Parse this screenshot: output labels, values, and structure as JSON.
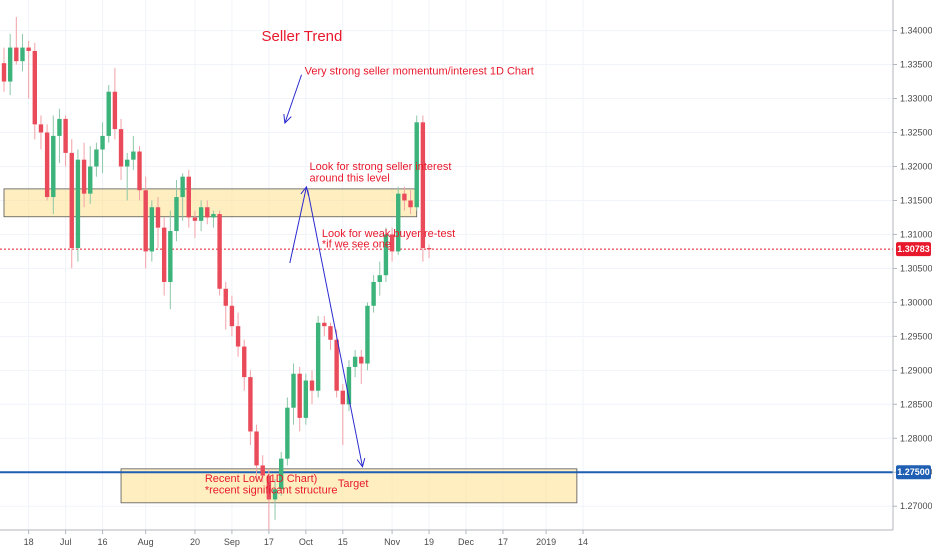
{
  "chart_data": {
    "type": "candlestick",
    "title": "Seller Trend",
    "ylim": [
      1.2665,
      1.3445
    ],
    "y_ticks": [
      "1.34000",
      "1.33500",
      "1.33000",
      "1.32500",
      "1.32000",
      "1.31500",
      "1.31000",
      "1.30500",
      "1.30000",
      "1.29500",
      "1.29000",
      "1.28500",
      "1.28000",
      "1.27500",
      "1.27000"
    ],
    "y_tick_values": [
      1.34,
      1.335,
      1.33,
      1.325,
      1.32,
      1.315,
      1.31,
      1.305,
      1.3,
      1.295,
      1.29,
      1.285,
      1.28,
      1.275,
      1.27
    ],
    "x_ticks": [
      "18",
      "Jul",
      "16",
      "Aug",
      "20",
      "Sep",
      "17",
      "Oct",
      "15",
      "Nov",
      "19",
      "Dec",
      "17",
      "2019",
      "14"
    ],
    "x_tick_index": [
      4,
      10,
      16,
      23,
      31,
      37,
      43,
      49,
      55,
      63,
      69,
      75,
      81,
      88,
      94
    ],
    "current_price": {
      "label": "1.30783",
      "value": 1.30783
    },
    "level_line": {
      "label": "1.27500",
      "value": 1.275
    },
    "zones": [
      {
        "name": "resistance-zone",
        "from_index": 0,
        "to_index": 67,
        "low": 1.3126,
        "high": 1.3167
      },
      {
        "name": "target-zone",
        "from_index": 19,
        "to_index": 93,
        "low": 1.2705,
        "high": 1.2755
      }
    ],
    "annotations": [
      {
        "text": "Very strong seller momentum/interest 1D Chart",
        "index": 48.8,
        "price": 1.3335
      },
      {
        "text": "Look for strong seller interest",
        "index": 49.6,
        "price": 1.3195
      },
      {
        "text": "around this level",
        "index": 49.6,
        "price": 1.3178
      },
      {
        "text": "Look for weak buyer re-test",
        "index": 51.6,
        "price": 1.3096
      },
      {
        "text": "*if we see one",
        "index": 51.6,
        "price": 1.3081
      },
      {
        "text": "Recent Low (1D Chart)",
        "index": 32.6,
        "price": 1.2736
      },
      {
        "text": "*recent significant structure",
        "index": 32.6,
        "price": 1.2719
      },
      {
        "text": "Target",
        "index": 54.2,
        "price": 1.2728
      }
    ],
    "arrows": [
      {
        "name": "momentum-arrow",
        "from": [
          48.3,
          1.3335
        ],
        "to": [
          45.6,
          1.3264
        ]
      },
      {
        "name": "upward-arrow",
        "from": [
          46.4,
          1.3058
        ],
        "to": [
          49.1,
          1.317
        ]
      },
      {
        "name": "target-arrow",
        "from": [
          49.3,
          1.3165
        ],
        "to": [
          58.2,
          1.2758
        ]
      }
    ],
    "candles": [
      {
        "o": 1.3352,
        "h": 1.3375,
        "l": 1.331,
        "c": 1.3325
      },
      {
        "o": 1.3325,
        "h": 1.3395,
        "l": 1.3305,
        "c": 1.3375
      },
      {
        "o": 1.3375,
        "h": 1.342,
        "l": 1.335,
        "c": 1.3355
      },
      {
        "o": 1.3355,
        "h": 1.3395,
        "l": 1.334,
        "c": 1.3375
      },
      {
        "o": 1.3375,
        "h": 1.3385,
        "l": 1.33,
        "c": 1.337
      },
      {
        "o": 1.337,
        "h": 1.3382,
        "l": 1.324,
        "c": 1.3262
      },
      {
        "o": 1.3262,
        "h": 1.3275,
        "l": 1.3225,
        "c": 1.325
      },
      {
        "o": 1.325,
        "h": 1.3262,
        "l": 1.315,
        "c": 1.3155
      },
      {
        "o": 1.3155,
        "h": 1.3275,
        "l": 1.313,
        "c": 1.3245
      },
      {
        "o": 1.3245,
        "h": 1.3285,
        "l": 1.3205,
        "c": 1.327
      },
      {
        "o": 1.327,
        "h": 1.3275,
        "l": 1.32,
        "c": 1.322
      },
      {
        "o": 1.322,
        "h": 1.324,
        "l": 1.305,
        "c": 1.308
      },
      {
        "o": 1.308,
        "h": 1.3225,
        "l": 1.306,
        "c": 1.321
      },
      {
        "o": 1.321,
        "h": 1.3235,
        "l": 1.314,
        "c": 1.316
      },
      {
        "o": 1.316,
        "h": 1.323,
        "l": 1.3145,
        "c": 1.32
      },
      {
        "o": 1.32,
        "h": 1.3235,
        "l": 1.3185,
        "c": 1.3225
      },
      {
        "o": 1.3225,
        "h": 1.3265,
        "l": 1.319,
        "c": 1.3245
      },
      {
        "o": 1.3245,
        "h": 1.332,
        "l": 1.3235,
        "c": 1.331
      },
      {
        "o": 1.331,
        "h": 1.3345,
        "l": 1.324,
        "c": 1.3255
      },
      {
        "o": 1.3255,
        "h": 1.327,
        "l": 1.318,
        "c": 1.32
      },
      {
        "o": 1.32,
        "h": 1.322,
        "l": 1.315,
        "c": 1.321
      },
      {
        "o": 1.321,
        "h": 1.3245,
        "l": 1.3195,
        "c": 1.3222
      },
      {
        "o": 1.3222,
        "h": 1.323,
        "l": 1.315,
        "c": 1.3165
      },
      {
        "o": 1.3165,
        "h": 1.3185,
        "l": 1.305,
        "c": 1.3075
      },
      {
        "o": 1.3075,
        "h": 1.315,
        "l": 1.306,
        "c": 1.314
      },
      {
        "o": 1.314,
        "h": 1.3155,
        "l": 1.308,
        "c": 1.311
      },
      {
        "o": 1.311,
        "h": 1.3125,
        "l": 1.301,
        "c": 1.303
      },
      {
        "o": 1.303,
        "h": 1.3135,
        "l": 1.299,
        "c": 1.3105
      },
      {
        "o": 1.3105,
        "h": 1.318,
        "l": 1.309,
        "c": 1.3155
      },
      {
        "o": 1.3155,
        "h": 1.319,
        "l": 1.312,
        "c": 1.3185
      },
      {
        "o": 1.3185,
        "h": 1.3195,
        "l": 1.311,
        "c": 1.3125
      },
      {
        "o": 1.3125,
        "h": 1.3135,
        "l": 1.3095,
        "c": 1.312
      },
      {
        "o": 1.312,
        "h": 1.315,
        "l": 1.3105,
        "c": 1.314
      },
      {
        "o": 1.314,
        "h": 1.315,
        "l": 1.3115,
        "c": 1.3125
      },
      {
        "o": 1.3125,
        "h": 1.3135,
        "l": 1.311,
        "c": 1.313
      },
      {
        "o": 1.313,
        "h": 1.3135,
        "l": 1.301,
        "c": 1.302
      },
      {
        "o": 1.302,
        "h": 1.303,
        "l": 1.296,
        "c": 1.2995
      },
      {
        "o": 1.2995,
        "h": 1.301,
        "l": 1.295,
        "c": 1.2965
      },
      {
        "o": 1.2965,
        "h": 1.2985,
        "l": 1.292,
        "c": 1.2935
      },
      {
        "o": 1.2935,
        "h": 1.2945,
        "l": 1.287,
        "c": 1.289
      },
      {
        "o": 1.289,
        "h": 1.29,
        "l": 1.279,
        "c": 1.281
      },
      {
        "o": 1.281,
        "h": 1.282,
        "l": 1.274,
        "c": 1.276
      },
      {
        "o": 1.276,
        "h": 1.2775,
        "l": 1.2735,
        "c": 1.2745
      },
      {
        "o": 1.2745,
        "h": 1.2755,
        "l": 1.2665,
        "c": 1.271
      },
      {
        "o": 1.271,
        "h": 1.274,
        "l": 1.268,
        "c": 1.2725
      },
      {
        "o": 1.2725,
        "h": 1.278,
        "l": 1.2715,
        "c": 1.277
      },
      {
        "o": 1.277,
        "h": 1.286,
        "l": 1.276,
        "c": 1.2845
      },
      {
        "o": 1.2845,
        "h": 1.291,
        "l": 1.282,
        "c": 1.2895
      },
      {
        "o": 1.2895,
        "h": 1.2905,
        "l": 1.281,
        "c": 1.283
      },
      {
        "o": 1.283,
        "h": 1.2895,
        "l": 1.282,
        "c": 1.2885
      },
      {
        "o": 1.2885,
        "h": 1.29,
        "l": 1.285,
        "c": 1.287
      },
      {
        "o": 1.287,
        "h": 1.298,
        "l": 1.286,
        "c": 1.297
      },
      {
        "o": 1.297,
        "h": 1.298,
        "l": 1.295,
        "c": 1.2965
      },
      {
        "o": 1.2965,
        "h": 1.297,
        "l": 1.293,
        "c": 1.2945
      },
      {
        "o": 1.2945,
        "h": 1.296,
        "l": 1.286,
        "c": 1.287
      },
      {
        "o": 1.287,
        "h": 1.288,
        "l": 1.279,
        "c": 1.285
      },
      {
        "o": 1.285,
        "h": 1.2915,
        "l": 1.284,
        "c": 1.2905
      },
      {
        "o": 1.2905,
        "h": 1.293,
        "l": 1.289,
        "c": 1.292
      },
      {
        "o": 1.292,
        "h": 1.293,
        "l": 1.288,
        "c": 1.291
      },
      {
        "o": 1.291,
        "h": 1.3,
        "l": 1.29,
        "c": 1.2995
      },
      {
        "o": 1.2995,
        "h": 1.304,
        "l": 1.2985,
        "c": 1.303
      },
      {
        "o": 1.303,
        "h": 1.306,
        "l": 1.301,
        "c": 1.304
      },
      {
        "o": 1.304,
        "h": 1.311,
        "l": 1.303,
        "c": 1.31
      },
      {
        "o": 1.31,
        "h": 1.311,
        "l": 1.306,
        "c": 1.3075
      },
      {
        "o": 1.3075,
        "h": 1.317,
        "l": 1.307,
        "c": 1.316
      },
      {
        "o": 1.316,
        "h": 1.317,
        "l": 1.3135,
        "c": 1.315
      },
      {
        "o": 1.315,
        "h": 1.3165,
        "l": 1.313,
        "c": 1.314
      },
      {
        "o": 1.314,
        "h": 1.3275,
        "l": 1.3135,
        "c": 1.3265
      },
      {
        "o": 1.3265,
        "h": 1.3275,
        "l": 1.306,
        "c": 1.308
      },
      {
        "o": 1.308,
        "h": 1.3085,
        "l": 1.3065,
        "c": 1.3078
      }
    ]
  }
}
